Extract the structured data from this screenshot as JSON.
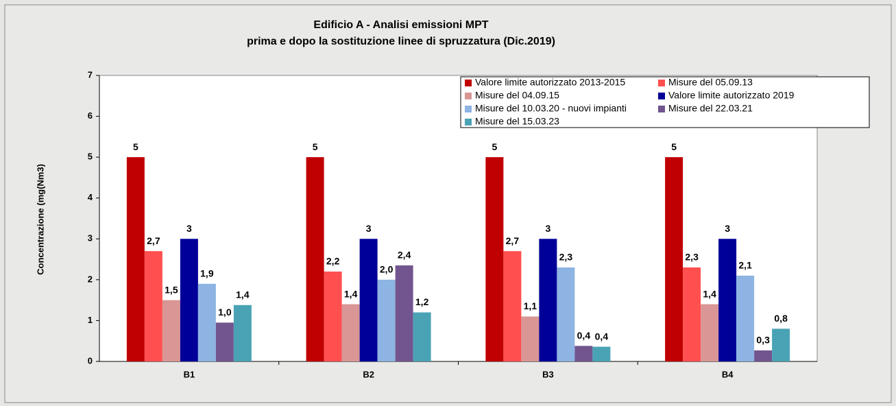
{
  "chart_data": {
    "type": "bar",
    "title": "Edificio A - Analisi  emissioni  MPT",
    "subtitle": "prima  e dopo  la sostituzione  linee  di  spruzzatura  (Dic.2019)",
    "y_label": "Concentrazione (mg(Nm3)",
    "categories": [
      "B1",
      "B2",
      "B3",
      "B4"
    ],
    "series": [
      {
        "name": "Valore limite autorizzato 2013-2015",
        "color": "#c00000",
        "values": [
          5,
          5,
          5,
          5
        ]
      },
      {
        "name": "Misure del 05.09.13",
        "color": "#ff4f4f",
        "values": [
          2.7,
          2.2,
          2.7,
          2.3
        ],
        "value_labels": [
          "2,7",
          "2,2",
          "2,7",
          "2,3"
        ]
      },
      {
        "name": "Misure del 04.09.15",
        "color": "#d99694",
        "values": [
          1.5,
          1.4,
          1.1,
          1.4
        ],
        "value_labels": [
          "1,5",
          "1,4",
          "1,1",
          "1,4"
        ]
      },
      {
        "name": "Valore limite autorizzato 2019",
        "color": "#000099",
        "values": [
          3,
          3,
          3,
          3
        ]
      },
      {
        "name": "Misure del 10.03.20 - nuovi impianti",
        "color": "#8db4e2",
        "values": [
          1.9,
          2.0,
          2.3,
          2.1
        ],
        "value_labels": [
          "1,9",
          "2,0",
          "2,3",
          "2,1"
        ]
      },
      {
        "name": "Misure del 22.03.21",
        "color": "#72558f",
        "values": [
          0.95,
          2.35,
          0.38,
          0.27
        ],
        "value_labels": [
          "1,0",
          "2,4",
          "0,4",
          "0,3"
        ]
      },
      {
        "name": "Misure del 15.03.23",
        "color": "#4aa3b5",
        "values": [
          1.38,
          1.2,
          0.36,
          0.8
        ],
        "value_labels": [
          "1,4",
          "1,2",
          "0,4",
          "0,8"
        ]
      }
    ],
    "ylim": [
      0,
      7
    ],
    "yticks": [
      0,
      1,
      2,
      3,
      4,
      5,
      6,
      7
    ],
    "grid": false,
    "legend": "top-right"
  }
}
